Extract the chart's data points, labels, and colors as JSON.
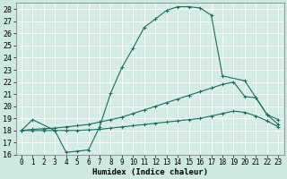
{
  "xlabel": "Humidex (Indice chaleur)",
  "bg_color": "#cce8e0",
  "grid_color": "#aacccc",
  "line_color": "#1a6b5a",
  "xlim": [
    -0.5,
    23.5
  ],
  "ylim": [
    16,
    28.5
  ],
  "xticks": [
    0,
    1,
    2,
    3,
    4,
    5,
    6,
    7,
    8,
    9,
    10,
    11,
    12,
    13,
    14,
    15,
    16,
    17,
    18,
    19,
    20,
    21,
    22,
    23
  ],
  "yticks": [
    16,
    17,
    18,
    19,
    20,
    21,
    22,
    23,
    24,
    25,
    26,
    27,
    28
  ],
  "line1_x": [
    0,
    1,
    3,
    4,
    5,
    6,
    7,
    8,
    9,
    10,
    11,
    12,
    13,
    14,
    15,
    16,
    17,
    18,
    20,
    21,
    22,
    23
  ],
  "line1_y": [
    18.0,
    18.9,
    18.0,
    16.2,
    16.3,
    16.4,
    18.3,
    21.1,
    23.2,
    24.8,
    26.5,
    27.2,
    27.9,
    28.2,
    28.2,
    28.1,
    27.5,
    22.5,
    22.1,
    20.7,
    19.3,
    18.9
  ],
  "line2_x": [
    0,
    1,
    2,
    3,
    4,
    5,
    6,
    7,
    8,
    9,
    10,
    11,
    12,
    13,
    14,
    15,
    16,
    17,
    18,
    19,
    20,
    21,
    22,
    23
  ],
  "line2_y": [
    18.0,
    18.1,
    18.15,
    18.2,
    18.3,
    18.4,
    18.5,
    18.7,
    18.9,
    19.1,
    19.4,
    19.7,
    20.0,
    20.3,
    20.6,
    20.9,
    21.2,
    21.5,
    21.8,
    22.0,
    20.8,
    20.7,
    19.3,
    18.5
  ],
  "line3_x": [
    0,
    1,
    2,
    3,
    4,
    5,
    6,
    7,
    8,
    9,
    10,
    11,
    12,
    13,
    14,
    15,
    16,
    17,
    18,
    19,
    20,
    21,
    22,
    23
  ],
  "line3_y": [
    18.0,
    18.0,
    18.0,
    18.0,
    18.0,
    18.0,
    18.05,
    18.1,
    18.2,
    18.3,
    18.4,
    18.5,
    18.6,
    18.7,
    18.8,
    18.9,
    19.0,
    19.2,
    19.4,
    19.6,
    19.5,
    19.2,
    18.8,
    18.3
  ],
  "marker": "+",
  "markersize": 3,
  "linewidth": 0.8,
  "font_size": 6.5
}
